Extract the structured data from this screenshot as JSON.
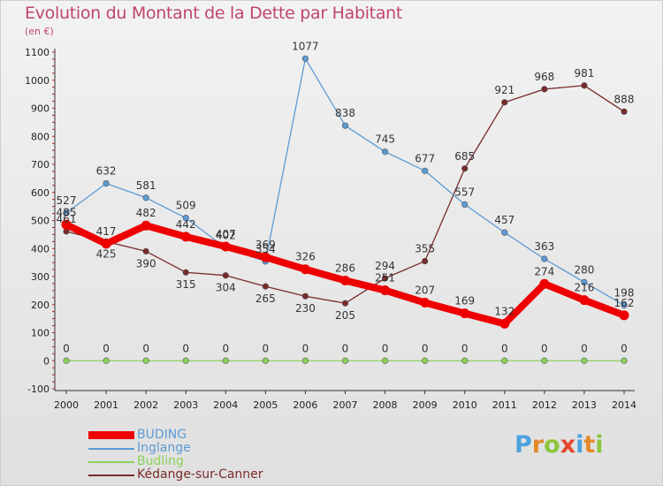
{
  "title": "Evolution du Montant de la Dette par Habitant",
  "unit": "(en €)",
  "logo": [
    "P",
    "r",
    "o",
    "x",
    "i",
    "t",
    "i"
  ],
  "logo_colors": [
    "#4aa3df",
    "#e58a2c",
    "#8cc63f",
    "#e5452c",
    "#4aa3df",
    "#e58a2c",
    "#8cc63f"
  ],
  "chart_data": {
    "type": "line",
    "title": "Evolution du Montant de la Dette par Habitant",
    "ylabel": "(en €)",
    "x": [
      2000,
      2001,
      2002,
      2003,
      2004,
      2005,
      2006,
      2007,
      2008,
      2009,
      2010,
      2011,
      2012,
      2013,
      2014
    ],
    "ylim": [
      -100,
      1100
    ],
    "yticks": [
      -100,
      0,
      100,
      200,
      300,
      400,
      500,
      600,
      700,
      800,
      900,
      1000,
      1100
    ],
    "grid": false,
    "legend": "bottom-left",
    "series": [
      {
        "name": "BUDING",
        "color": "#ee0000",
        "values": [
          485,
          417,
          482,
          442,
          407,
          369,
          326,
          286,
          251,
          207,
          169,
          132,
          274,
          216,
          162
        ]
      },
      {
        "name": "Inglange",
        "color": "#5b9bd5",
        "values": [
          527,
          632,
          581,
          509,
          402,
          354,
          1077,
          838,
          745,
          677,
          557,
          457,
          363,
          280,
          198
        ]
      },
      {
        "name": "Budling",
        "color": "#8cd15b",
        "values": [
          0,
          0,
          0,
          0,
          0,
          0,
          0,
          0,
          0,
          0,
          0,
          0,
          0,
          0,
          0
        ]
      },
      {
        "name": "Kédange-sur-Canner",
        "color": "#7a2a2a",
        "values": [
          461,
          425,
          390,
          315,
          304,
          265,
          230,
          205,
          294,
          355,
          685,
          921,
          968,
          981,
          888
        ]
      }
    ]
  }
}
